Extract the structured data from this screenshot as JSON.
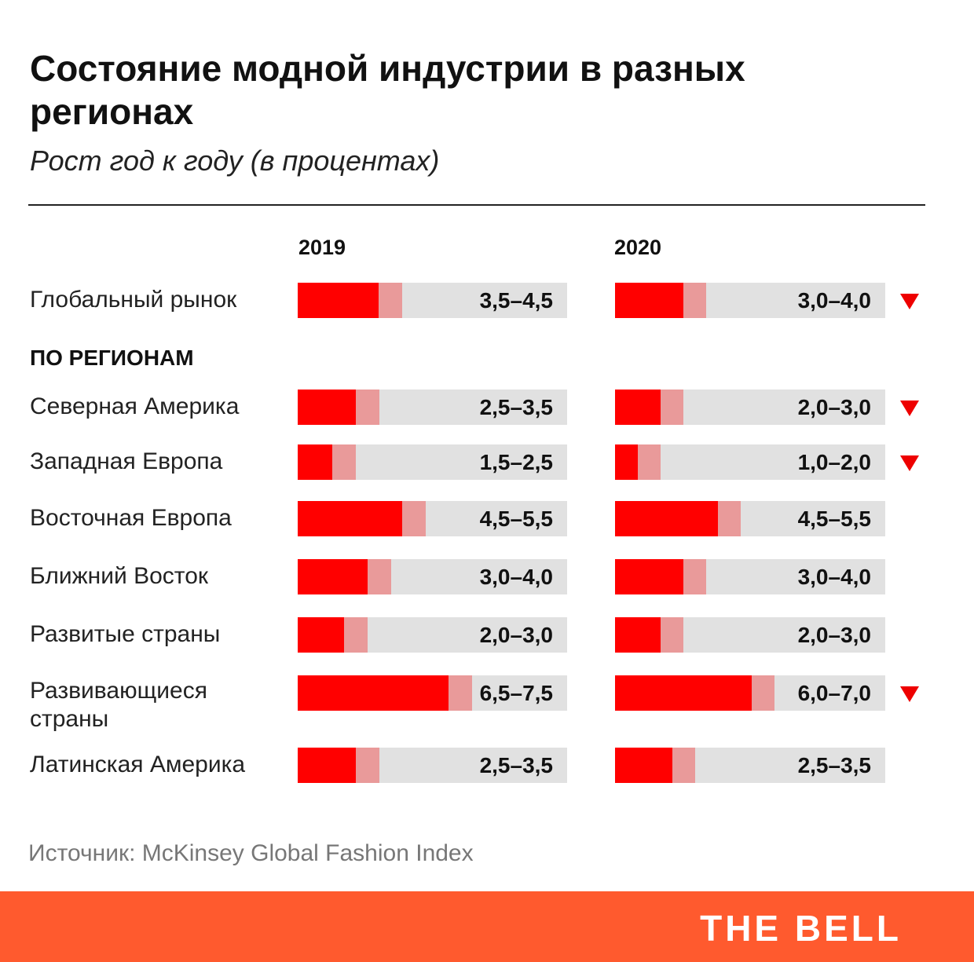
{
  "chart_data": {
    "type": "bar",
    "title": "Состояние модной индустрии в разных регионах",
    "subtitle": "Рост год к году (в процентах)",
    "xlim": [
      0,
      9
    ],
    "series_names": [
      "2019",
      "2020"
    ],
    "section_label": "ПО РЕГИОНАМ",
    "rows": [
      {
        "label": "Глобальный рынок",
        "v2019": [
          3.5,
          4.5
        ],
        "l2019": "3,5–4,5",
        "v2020": [
          3.0,
          4.0
        ],
        "l2020": "3,0–4,0",
        "down": true
      },
      {
        "label": "Северная Америка",
        "v2019": [
          2.5,
          3.5
        ],
        "l2019": "2,5–3,5",
        "v2020": [
          2.0,
          3.0
        ],
        "l2020": "2,0–3,0",
        "down": true
      },
      {
        "label": "Западная Европа",
        "v2019": [
          1.5,
          2.5
        ],
        "l2019": "1,5–2,5",
        "v2020": [
          1.0,
          2.0
        ],
        "l2020": "1,0–2,0",
        "down": true
      },
      {
        "label": "Восточная Европа",
        "v2019": [
          4.5,
          5.5
        ],
        "l2019": "4,5–5,5",
        "v2020": [
          4.5,
          5.5
        ],
        "l2020": "4,5–5,5",
        "down": false
      },
      {
        "label": "Ближний Восток",
        "v2019": [
          3.0,
          4.0
        ],
        "l2019": "3,0–4,0",
        "v2020": [
          3.0,
          4.0
        ],
        "l2020": "3,0–4,0",
        "down": false
      },
      {
        "label": "Развитые страны",
        "v2019": [
          2.0,
          3.0
        ],
        "l2019": "2,0–3,0",
        "v2020": [
          2.0,
          3.0
        ],
        "l2020": "2,0–3,0",
        "down": false
      },
      {
        "label": "Развивающиеся страны",
        "v2019": [
          6.5,
          7.5
        ],
        "l2019": "6,5–7,5",
        "v2020": [
          6.0,
          7.0
        ],
        "l2020": "6,0–7,0",
        "down": true
      },
      {
        "label": "Латинская Америка",
        "v2019": [
          2.5,
          3.5
        ],
        "l2019": "2,5–3,5",
        "v2020": [
          2.5,
          3.5
        ],
        "l2020": "2,5–3,5",
        "down": false
      }
    ]
  },
  "source": "Источник:  McKinsey Global Fashion Index",
  "brand": "THE BELL",
  "colors": {
    "low": "#ff0000",
    "range": "#e99a9a",
    "track": "#e1e1e1",
    "brand_bg": "#ff5a2e",
    "down": "#ee0000"
  }
}
